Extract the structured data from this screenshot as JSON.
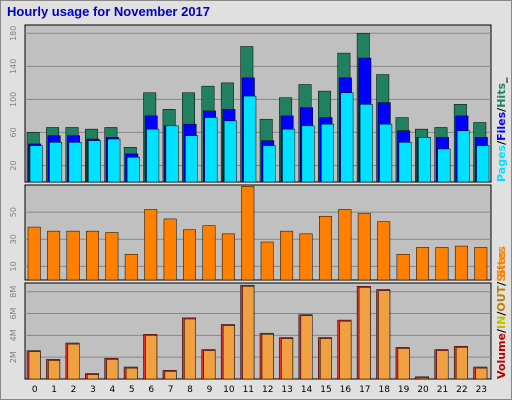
{
  "title": "Hourly usage for November 2017",
  "colors": {
    "background": "#e0e0e0",
    "panel": "#c0c0c0",
    "hits": "#208060",
    "files": "#0000ff",
    "pages": "#00e0ff",
    "sites": "#ff8000",
    "kbytes": "#e03030",
    "kbytes_out": "#f0a040",
    "title": "#0000c0"
  },
  "chart_data": [
    {
      "type": "bar",
      "name_label": "hits-files-pages",
      "categories": [
        "0",
        "1",
        "2",
        "3",
        "4",
        "5",
        "6",
        "7",
        "8",
        "9",
        "10",
        "11",
        "12",
        "13",
        "14",
        "15",
        "16",
        "17",
        "18",
        "19",
        "20",
        "21",
        "22",
        "23"
      ],
      "series": [
        {
          "name": "Hits",
          "values": [
            60,
            66,
            66,
            64,
            66,
            42,
            108,
            88,
            108,
            116,
            120,
            164,
            76,
            102,
            118,
            110,
            156,
            180,
            130,
            78,
            64,
            66,
            94,
            72
          ]
        },
        {
          "name": "Files",
          "values": [
            46,
            56,
            56,
            52,
            54,
            34,
            80,
            68,
            70,
            86,
            88,
            126,
            50,
            80,
            90,
            78,
            126,
            150,
            96,
            62,
            54,
            54,
            80,
            54
          ]
        },
        {
          "name": "Pages",
          "values": [
            44,
            48,
            48,
            50,
            52,
            30,
            64,
            68,
            56,
            78,
            74,
            104,
            44,
            64,
            68,
            70,
            108,
            94,
            70,
            48,
            54,
            40,
            62,
            44
          ]
        }
      ],
      "yticks": [
        20,
        60,
        100,
        140,
        180
      ],
      "ylim": [
        0,
        190
      ],
      "legend": [
        "Pages",
        "/",
        "Files",
        "/",
        "Hits",
        "_"
      ],
      "legend_position": "right-vertical",
      "grid": true
    },
    {
      "type": "bar",
      "name_label": "sites",
      "categories": [
        "0",
        "1",
        "2",
        "3",
        "4",
        "5",
        "6",
        "7",
        "8",
        "9",
        "10",
        "11",
        "12",
        "13",
        "14",
        "15",
        "16",
        "17",
        "18",
        "19",
        "20",
        "21",
        "22",
        "23"
      ],
      "series": [
        {
          "name": "Sites",
          "values": [
            39,
            36,
            36,
            36,
            35,
            19,
            52,
            45,
            37,
            40,
            34,
            69,
            28,
            36,
            34,
            47,
            52,
            49,
            43,
            19,
            24,
            24,
            25,
            24
          ]
        }
      ],
      "yticks": [
        10,
        30,
        50
      ],
      "ylim": [
        0,
        70
      ],
      "legend": [
        "Sites"
      ],
      "legend_position": "right-vertical",
      "grid": true
    },
    {
      "type": "bar",
      "name_label": "volume",
      "categories": [
        "0",
        "1",
        "2",
        "3",
        "4",
        "5",
        "6",
        "7",
        "8",
        "9",
        "10",
        "11",
        "12",
        "13",
        "14",
        "15",
        "16",
        "17",
        "18",
        "19",
        "20",
        "21",
        "22",
        "23"
      ],
      "series": [
        {
          "name": "Volume",
          "values": [
            2.6,
            1.8,
            3.3,
            0.5,
            1.9,
            1.1,
            4.1,
            0.8,
            5.6,
            2.7,
            5.0,
            8.6,
            4.2,
            3.8,
            5.9,
            3.8,
            5.4,
            8.5,
            8.2,
            2.9,
            0.2,
            2.7,
            3.0,
            1.1
          ]
        },
        {
          "name": "OUT",
          "values": [
            2.5,
            1.7,
            3.2,
            0.4,
            1.8,
            1.0,
            4.0,
            0.7,
            5.5,
            2.6,
            4.9,
            8.5,
            4.1,
            3.7,
            5.8,
            3.7,
            5.3,
            8.4,
            8.1,
            2.8,
            0.1,
            2.6,
            2.9,
            1.0
          ]
        }
      ],
      "yticks": [
        "2M",
        "4M",
        "6M",
        "8M"
      ],
      "ytick_values": [
        2,
        4,
        6,
        8
      ],
      "ylim": [
        0,
        8.8
      ],
      "legend": [
        "Volume",
        "/",
        "IN",
        "/",
        "OUT",
        "/",
        "Sites"
      ],
      "legend_position": "right-vertical",
      "grid": true
    }
  ]
}
